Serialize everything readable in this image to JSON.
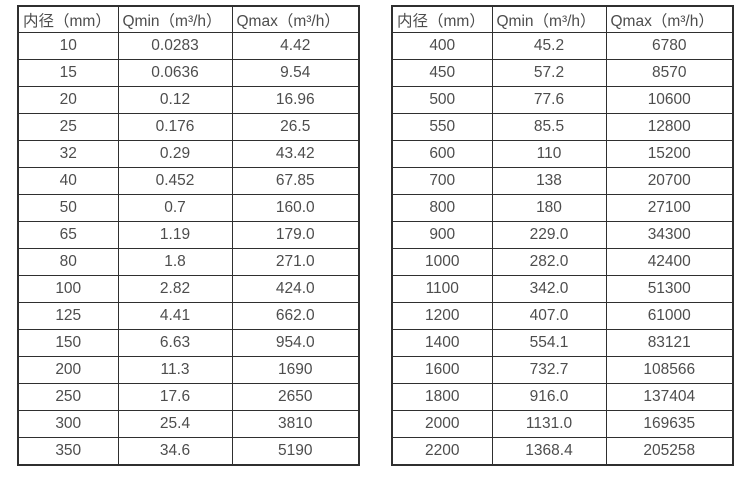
{
  "colors": {
    "background": "#ffffff",
    "border": "#2f2f2f",
    "text": "#4d4d4d"
  },
  "tables": [
    {
      "name": "flow-spec-table-small-diameters",
      "col_keys": [
        "diameter",
        "qmin",
        "qmax"
      ],
      "headers": [
        "内径（mm）",
        "Qmin（m³/h）",
        "Qmax（m³/h）"
      ],
      "rows": [
        [
          "10",
          "0.0283",
          "4.42"
        ],
        [
          "15",
          "0.0636",
          "9.54"
        ],
        [
          "20",
          "0.12",
          "16.96"
        ],
        [
          "25",
          "0.176",
          "26.5"
        ],
        [
          "32",
          "0.29",
          "43.42"
        ],
        [
          "40",
          "0.452",
          "67.85"
        ],
        [
          "50",
          "0.7",
          "160.0"
        ],
        [
          "65",
          "1.19",
          "179.0"
        ],
        [
          "80",
          "1.8",
          "271.0"
        ],
        [
          "100",
          "2.82",
          "424.0"
        ],
        [
          "125",
          "4.41",
          "662.0"
        ],
        [
          "150",
          "6.63",
          "954.0"
        ],
        [
          "200",
          "11.3",
          "1690"
        ],
        [
          "250",
          "17.6",
          "2650"
        ],
        [
          "300",
          "25.4",
          "3810"
        ],
        [
          "350",
          "34.6",
          "5190"
        ]
      ]
    },
    {
      "name": "flow-spec-table-large-diameters",
      "col_keys": [
        "diameter",
        "qmin",
        "qmax"
      ],
      "headers": [
        "内径（mm）",
        "Qmin（m³/h）",
        "Qmax（m³/h）"
      ],
      "rows": [
        [
          "400",
          "45.2",
          "6780"
        ],
        [
          "450",
          "57.2",
          "8570"
        ],
        [
          "500",
          "77.6",
          "10600"
        ],
        [
          "550",
          "85.5",
          "12800"
        ],
        [
          "600",
          "110",
          "15200"
        ],
        [
          "700",
          "138",
          "20700"
        ],
        [
          "800",
          "180",
          "27100"
        ],
        [
          "900",
          "229.0",
          "34300"
        ],
        [
          "1000",
          "282.0",
          "42400"
        ],
        [
          "1100",
          "342.0",
          "51300"
        ],
        [
          "1200",
          "407.0",
          "61000"
        ],
        [
          "1400",
          "554.1",
          "83121"
        ],
        [
          "1600",
          "732.7",
          "108566"
        ],
        [
          "1800",
          "916.0",
          "137404"
        ],
        [
          "2000",
          "1131.0",
          "169635"
        ],
        [
          "2200",
          "1368.4",
          "205258"
        ]
      ]
    }
  ]
}
